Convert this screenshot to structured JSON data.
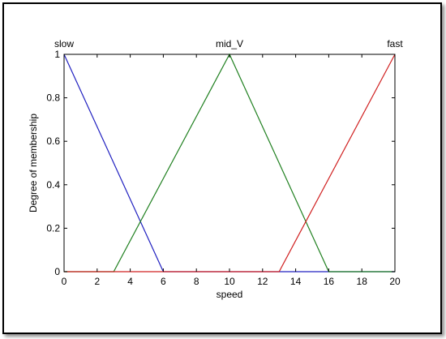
{
  "chart_data": {
    "type": "line",
    "title": "",
    "xlabel": "speed",
    "ylabel": "Degree of membership",
    "xlim": [
      0,
      20
    ],
    "ylim": [
      0,
      1
    ],
    "xticks": [
      0,
      2,
      4,
      6,
      8,
      10,
      12,
      14,
      16,
      18,
      20
    ],
    "yticks": [
      0,
      0.2,
      0.4,
      0.6,
      0.8,
      1
    ],
    "grid": false,
    "series": [
      {
        "name": "slow",
        "color": "#2020c0",
        "x": [
          0,
          0,
          6,
          20
        ],
        "y": [
          1,
          1,
          0,
          0
        ]
      },
      {
        "name": "mid_V",
        "color": "#208020",
        "x": [
          0,
          3,
          10,
          16,
          20
        ],
        "y": [
          0,
          0,
          1,
          0,
          0
        ]
      },
      {
        "name": "fast",
        "color": "#d02020",
        "x": [
          0,
          13,
          20
        ],
        "y": [
          0,
          0,
          1
        ]
      }
    ]
  }
}
